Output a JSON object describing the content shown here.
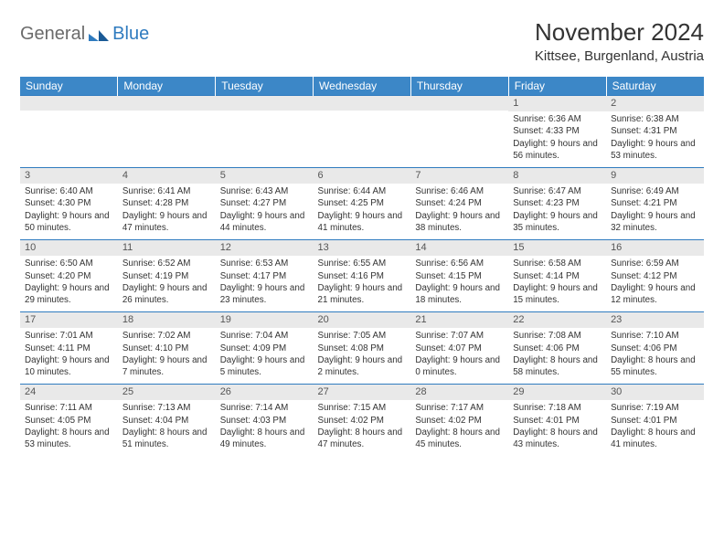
{
  "logo": {
    "general": "General",
    "blue": "Blue"
  },
  "header": {
    "month_title": "November 2024",
    "location": "Kittsee, Burgenland, Austria"
  },
  "colors": {
    "header_bg": "#3c87c7",
    "header_text": "#ffffff",
    "daynum_bg": "#e9e9e9",
    "border": "#2f7bbf",
    "body_bg": "#ffffff",
    "text": "#333333"
  },
  "weekdays": [
    "Sunday",
    "Monday",
    "Tuesday",
    "Wednesday",
    "Thursday",
    "Friday",
    "Saturday"
  ],
  "weeks": [
    [
      {
        "empty": true
      },
      {
        "empty": true
      },
      {
        "empty": true
      },
      {
        "empty": true
      },
      {
        "empty": true
      },
      {
        "day": "1",
        "sunrise": "6:36 AM",
        "sunset": "4:33 PM",
        "daylight": "9 hours and 56 minutes."
      },
      {
        "day": "2",
        "sunrise": "6:38 AM",
        "sunset": "4:31 PM",
        "daylight": "9 hours and 53 minutes."
      }
    ],
    [
      {
        "day": "3",
        "sunrise": "6:40 AM",
        "sunset": "4:30 PM",
        "daylight": "9 hours and 50 minutes."
      },
      {
        "day": "4",
        "sunrise": "6:41 AM",
        "sunset": "4:28 PM",
        "daylight": "9 hours and 47 minutes."
      },
      {
        "day": "5",
        "sunrise": "6:43 AM",
        "sunset": "4:27 PM",
        "daylight": "9 hours and 44 minutes."
      },
      {
        "day": "6",
        "sunrise": "6:44 AM",
        "sunset": "4:25 PM",
        "daylight": "9 hours and 41 minutes."
      },
      {
        "day": "7",
        "sunrise": "6:46 AM",
        "sunset": "4:24 PM",
        "daylight": "9 hours and 38 minutes."
      },
      {
        "day": "8",
        "sunrise": "6:47 AM",
        "sunset": "4:23 PM",
        "daylight": "9 hours and 35 minutes."
      },
      {
        "day": "9",
        "sunrise": "6:49 AM",
        "sunset": "4:21 PM",
        "daylight": "9 hours and 32 minutes."
      }
    ],
    [
      {
        "day": "10",
        "sunrise": "6:50 AM",
        "sunset": "4:20 PM",
        "daylight": "9 hours and 29 minutes."
      },
      {
        "day": "11",
        "sunrise": "6:52 AM",
        "sunset": "4:19 PM",
        "daylight": "9 hours and 26 minutes."
      },
      {
        "day": "12",
        "sunrise": "6:53 AM",
        "sunset": "4:17 PM",
        "daylight": "9 hours and 23 minutes."
      },
      {
        "day": "13",
        "sunrise": "6:55 AM",
        "sunset": "4:16 PM",
        "daylight": "9 hours and 21 minutes."
      },
      {
        "day": "14",
        "sunrise": "6:56 AM",
        "sunset": "4:15 PM",
        "daylight": "9 hours and 18 minutes."
      },
      {
        "day": "15",
        "sunrise": "6:58 AM",
        "sunset": "4:14 PM",
        "daylight": "9 hours and 15 minutes."
      },
      {
        "day": "16",
        "sunrise": "6:59 AM",
        "sunset": "4:12 PM",
        "daylight": "9 hours and 12 minutes."
      }
    ],
    [
      {
        "day": "17",
        "sunrise": "7:01 AM",
        "sunset": "4:11 PM",
        "daylight": "9 hours and 10 minutes."
      },
      {
        "day": "18",
        "sunrise": "7:02 AM",
        "sunset": "4:10 PM",
        "daylight": "9 hours and 7 minutes."
      },
      {
        "day": "19",
        "sunrise": "7:04 AM",
        "sunset": "4:09 PM",
        "daylight": "9 hours and 5 minutes."
      },
      {
        "day": "20",
        "sunrise": "7:05 AM",
        "sunset": "4:08 PM",
        "daylight": "9 hours and 2 minutes."
      },
      {
        "day": "21",
        "sunrise": "7:07 AM",
        "sunset": "4:07 PM",
        "daylight": "9 hours and 0 minutes."
      },
      {
        "day": "22",
        "sunrise": "7:08 AM",
        "sunset": "4:06 PM",
        "daylight": "8 hours and 58 minutes."
      },
      {
        "day": "23",
        "sunrise": "7:10 AM",
        "sunset": "4:06 PM",
        "daylight": "8 hours and 55 minutes."
      }
    ],
    [
      {
        "day": "24",
        "sunrise": "7:11 AM",
        "sunset": "4:05 PM",
        "daylight": "8 hours and 53 minutes."
      },
      {
        "day": "25",
        "sunrise": "7:13 AM",
        "sunset": "4:04 PM",
        "daylight": "8 hours and 51 minutes."
      },
      {
        "day": "26",
        "sunrise": "7:14 AM",
        "sunset": "4:03 PM",
        "daylight": "8 hours and 49 minutes."
      },
      {
        "day": "27",
        "sunrise": "7:15 AM",
        "sunset": "4:02 PM",
        "daylight": "8 hours and 47 minutes."
      },
      {
        "day": "28",
        "sunrise": "7:17 AM",
        "sunset": "4:02 PM",
        "daylight": "8 hours and 45 minutes."
      },
      {
        "day": "29",
        "sunrise": "7:18 AM",
        "sunset": "4:01 PM",
        "daylight": "8 hours and 43 minutes."
      },
      {
        "day": "30",
        "sunrise": "7:19 AM",
        "sunset": "4:01 PM",
        "daylight": "8 hours and 41 minutes."
      }
    ]
  ],
  "labels": {
    "sunrise": "Sunrise: ",
    "sunset": "Sunset: ",
    "daylight": "Daylight: "
  }
}
